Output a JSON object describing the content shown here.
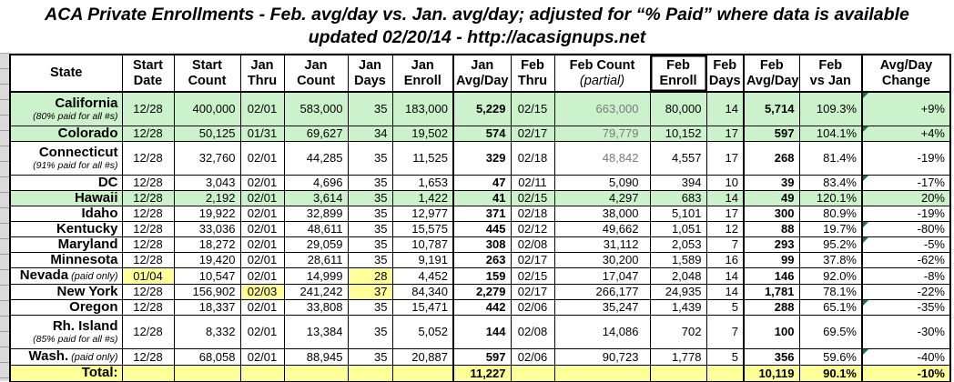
{
  "title": {
    "line1": "ACA Private Enrollments - Feb. avg/day vs. Jan. avg/day; adjusted for “% Paid” where data is available",
    "line2": "updated 02/20/14 - http://acasignups.net"
  },
  "colors": {
    "green_row": "#ccf2cc",
    "yellow": "#ffff99",
    "triangle": "#1f7246",
    "gray_text": "#7a7a7a"
  },
  "table": {
    "columns": [
      {
        "id": "state",
        "line1": "State",
        "line2": ""
      },
      {
        "id": "start_date",
        "line1": "Start",
        "line2": "Date"
      },
      {
        "id": "start_count",
        "line1": "Start",
        "line2": "Count"
      },
      {
        "id": "jan_thru",
        "line1": "Jan",
        "line2": "Thru"
      },
      {
        "id": "jan_count",
        "line1": "Jan",
        "line2": "Count"
      },
      {
        "id": "jan_days",
        "line1": "Jan",
        "line2": "Days"
      },
      {
        "id": "jan_enroll",
        "line1": "Jan",
        "line2": "Enroll"
      },
      {
        "id": "jan_avg_day",
        "line1": "Jan",
        "line2": "Avg/Day"
      },
      {
        "id": "feb_thru",
        "line1": "Feb",
        "line2": "Thru"
      },
      {
        "id": "feb_count",
        "line1": "Feb Count",
        "line2": "(partial)",
        "line2_italic": true
      },
      {
        "id": "feb_enroll",
        "line1": "Feb",
        "line2": "Enroll",
        "selected": true
      },
      {
        "id": "feb_days",
        "line1": "Feb",
        "line2": "Days"
      },
      {
        "id": "feb_avg_day",
        "line1": "Feb",
        "line2": "Avg/Day"
      },
      {
        "id": "feb_vs_jan",
        "line1": "Feb",
        "line2": "vs Jan"
      },
      {
        "id": "change",
        "line1": "Avg/Day",
        "line2": "Change"
      }
    ],
    "rows": [
      {
        "state": "California",
        "note": "(80% paid for all #s)",
        "tall": true,
        "bg": "green",
        "triangle": true,
        "gray_cells": [
          "feb_count"
        ],
        "yellow_cells": [],
        "start_date": "12/28",
        "start_count": "400,000",
        "jan_thru": "02/01",
        "jan_count": "583,000",
        "jan_days": "35",
        "jan_enroll": "183,000",
        "jan_avg_day": "5,229",
        "feb_thru": "02/15",
        "feb_count": "663,000",
        "feb_enroll": "80,000",
        "feb_days": "14",
        "feb_avg_day": "5,714",
        "feb_vs_jan": "109.3%",
        "change": "+9%"
      },
      {
        "state": "Colorado",
        "note": "",
        "tall": false,
        "bg": "green",
        "triangle": true,
        "gray_cells": [
          "feb_count"
        ],
        "yellow_cells": [],
        "start_date": "12/28",
        "start_count": "50,125",
        "jan_thru": "01/31",
        "jan_count": "69,627",
        "jan_days": "34",
        "jan_enroll": "19,502",
        "jan_avg_day": "574",
        "feb_thru": "02/17",
        "feb_count": "79,779",
        "feb_enroll": "10,152",
        "feb_days": "17",
        "feb_avg_day": "597",
        "feb_vs_jan": "104.1%",
        "change": "+4%"
      },
      {
        "state": "Connecticut",
        "note": "(91% paid for all #s)",
        "tall": true,
        "bg": "white",
        "triangle": false,
        "gray_cells": [
          "feb_count"
        ],
        "yellow_cells": [],
        "start_date": "12/28",
        "start_count": "32,760",
        "jan_thru": "02/01",
        "jan_count": "44,285",
        "jan_days": "35",
        "jan_enroll": "11,525",
        "jan_avg_day": "329",
        "feb_thru": "02/18",
        "feb_count": "48,842",
        "feb_enroll": "4,557",
        "feb_days": "17",
        "feb_avg_day": "268",
        "feb_vs_jan": "81.4%",
        "change": "-19%"
      },
      {
        "state": "DC",
        "note": "",
        "tall": false,
        "bg": "white",
        "triangle": true,
        "gray_cells": [],
        "yellow_cells": [],
        "start_date": "12/28",
        "start_count": "3,043",
        "jan_thru": "02/01",
        "jan_count": "4,696",
        "jan_days": "35",
        "jan_enroll": "1,653",
        "jan_avg_day": "47",
        "feb_thru": "02/11",
        "feb_count": "5,090",
        "feb_enroll": "394",
        "feb_days": "10",
        "feb_avg_day": "39",
        "feb_vs_jan": "83.4%",
        "change": "-17%"
      },
      {
        "state": "Hawaii",
        "note": "",
        "tall": false,
        "bg": "green",
        "triangle": false,
        "gray_cells": [],
        "yellow_cells": [],
        "start_date": "12/28",
        "start_count": "2,192",
        "jan_thru": "02/01",
        "jan_count": "3,614",
        "jan_days": "35",
        "jan_enroll": "1,422",
        "jan_avg_day": "41",
        "feb_thru": "02/15",
        "feb_count": "4,297",
        "feb_enroll": "683",
        "feb_days": "14",
        "feb_avg_day": "49",
        "feb_vs_jan": "120.1%",
        "change": "20%"
      },
      {
        "state": "Idaho",
        "note": "",
        "tall": false,
        "bg": "white",
        "triangle": false,
        "gray_cells": [],
        "yellow_cells": [],
        "start_date": "12/28",
        "start_count": "19,922",
        "jan_thru": "02/01",
        "jan_count": "32,899",
        "jan_days": "35",
        "jan_enroll": "12,977",
        "jan_avg_day": "371",
        "feb_thru": "02/18",
        "feb_count": "38,000",
        "feb_enroll": "5,101",
        "feb_days": "17",
        "feb_avg_day": "300",
        "feb_vs_jan": "80.9%",
        "change": "-19%"
      },
      {
        "state": "Kentucky",
        "note": "",
        "tall": false,
        "bg": "white",
        "triangle": true,
        "gray_cells": [],
        "yellow_cells": [],
        "start_date": "12/28",
        "start_count": "33,036",
        "jan_thru": "02/01",
        "jan_count": "48,611",
        "jan_days": "35",
        "jan_enroll": "15,575",
        "jan_avg_day": "445",
        "feb_thru": "02/12",
        "feb_count": "49,662",
        "feb_enroll": "1,051",
        "feb_days": "12",
        "feb_avg_day": "88",
        "feb_vs_jan": "19.7%",
        "change": "-80%"
      },
      {
        "state": "Maryland",
        "note": "",
        "tall": false,
        "bg": "white",
        "triangle": true,
        "gray_cells": [],
        "yellow_cells": [],
        "start_date": "12/28",
        "start_count": "18,272",
        "jan_thru": "02/01",
        "jan_count": "29,059",
        "jan_days": "35",
        "jan_enroll": "10,787",
        "jan_avg_day": "308",
        "feb_thru": "02/08",
        "feb_count": "31,112",
        "feb_enroll": "2,053",
        "feb_days": "7",
        "feb_avg_day": "293",
        "feb_vs_jan": "95.2%",
        "change": "-5%"
      },
      {
        "state": "Minnesota",
        "note": "",
        "tall": false,
        "bg": "white",
        "triangle": false,
        "gray_cells": [],
        "yellow_cells": [],
        "start_date": "12/28",
        "start_count": "19,420",
        "jan_thru": "02/01",
        "jan_count": "28,611",
        "jan_days": "35",
        "jan_enroll": "9,191",
        "jan_avg_day": "263",
        "feb_thru": "02/17",
        "feb_count": "30,200",
        "feb_enroll": "1,589",
        "feb_days": "16",
        "feb_avg_day": "99",
        "feb_vs_jan": "37.8%",
        "change": "-62%"
      },
      {
        "state": "Nevada",
        "note": "(paid only)",
        "note_inline": true,
        "tall": false,
        "bg": "white",
        "triangle": false,
        "gray_cells": [],
        "yellow_cells": [
          "start_date",
          "jan_days"
        ],
        "start_date": "01/04",
        "start_count": "10,547",
        "jan_thru": "02/01",
        "jan_count": "14,999",
        "jan_days": "28",
        "jan_enroll": "4,452",
        "jan_avg_day": "159",
        "feb_thru": "02/15",
        "feb_count": "17,047",
        "feb_enroll": "2,048",
        "feb_days": "14",
        "feb_avg_day": "146",
        "feb_vs_jan": "92.0%",
        "change": "-8%"
      },
      {
        "state": "New York",
        "note": "",
        "tall": false,
        "bg": "white",
        "triangle": false,
        "gray_cells": [],
        "yellow_cells": [
          "jan_thru",
          "jan_days"
        ],
        "start_date": "12/28",
        "start_count": "156,902",
        "jan_thru": "02/03",
        "jan_count": "241,242",
        "jan_days": "37",
        "jan_enroll": "84,340",
        "jan_avg_day": "2,279",
        "feb_thru": "02/17",
        "feb_count": "266,177",
        "feb_enroll": "24,935",
        "feb_days": "14",
        "feb_avg_day": "1,781",
        "feb_vs_jan": "78.1%",
        "change": "-22%"
      },
      {
        "state": "Oregon",
        "note": "",
        "tall": false,
        "bg": "white",
        "triangle": true,
        "gray_cells": [],
        "yellow_cells": [],
        "start_date": "12/28",
        "start_count": "18,337",
        "jan_thru": "02/01",
        "jan_count": "33,808",
        "jan_days": "35",
        "jan_enroll": "15,471",
        "jan_avg_day": "442",
        "feb_thru": "02/06",
        "feb_count": "35,247",
        "feb_enroll": "1,439",
        "feb_days": "5",
        "feb_avg_day": "288",
        "feb_vs_jan": "65.1%",
        "change": "-35%"
      },
      {
        "state": "Rh. Island",
        "note": "(85% paid for all #s)",
        "tall": true,
        "bg": "white",
        "triangle": false,
        "gray_cells": [],
        "yellow_cells": [],
        "start_date": "12/28",
        "start_count": "8,332",
        "jan_thru": "02/01",
        "jan_count": "13,384",
        "jan_days": "35",
        "jan_enroll": "5,052",
        "jan_avg_day": "144",
        "feb_thru": "02/08",
        "feb_count": "14,086",
        "feb_enroll": "702",
        "feb_days": "7",
        "feb_avg_day": "100",
        "feb_vs_jan": "69.5%",
        "change": "-30%"
      },
      {
        "state": "Wash.",
        "note": "(paid only)",
        "note_inline": true,
        "tall": false,
        "bg": "white",
        "triangle": true,
        "gray_cells": [],
        "yellow_cells": [],
        "start_date": "12/28",
        "start_count": "68,058",
        "jan_thru": "02/01",
        "jan_count": "88,945",
        "jan_days": "35",
        "jan_enroll": "20,887",
        "jan_avg_day": "597",
        "feb_thru": "02/06",
        "feb_count": "90,723",
        "feb_enroll": "1,778",
        "feb_days": "5",
        "feb_avg_day": "356",
        "feb_vs_jan": "59.6%",
        "change": "-40%"
      },
      {
        "state": "Total:",
        "note": "",
        "tall": false,
        "bg": "white",
        "is_total": true,
        "triangle": false,
        "gray_cells": [],
        "yellow_cells": [],
        "start_date": "",
        "start_count": "",
        "jan_thru": "",
        "jan_count": "",
        "jan_days": "",
        "jan_enroll": "",
        "jan_avg_day": "11,227",
        "feb_thru": "",
        "feb_count": "",
        "feb_enroll": "",
        "feb_days": "",
        "feb_avg_day": "10,119",
        "feb_vs_jan": "90.1%",
        "change": "-10%"
      }
    ]
  }
}
